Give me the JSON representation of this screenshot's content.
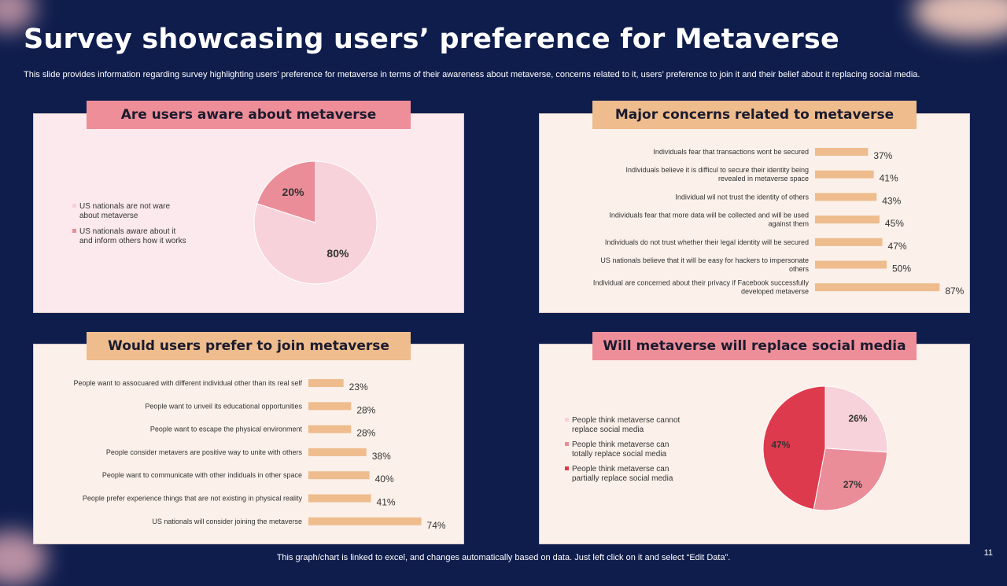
{
  "title": "Survey showcasing users’ preference for Metaverse",
  "subtitle": "This slide provides information regarding survey highlighting users’ preference for metaverse in terms of their awareness about metaverse, concerns related to it, users’ preference to join it and their belief about it replacing social media.",
  "footer": "This graph/chart is linked to excel,  and changes automatically based on data. Just left click on it and select “Edit Data”.",
  "page_number": "11",
  "colors": {
    "background": "#0f1d4d",
    "pink_header": "#ee8e99",
    "peach_header": "#eebc8d",
    "bar": "#eebc8d",
    "pie_light": "#f8d2da",
    "pie_mid": "#ea8d98",
    "pie_dark": "#de3a4d"
  },
  "chart_data": [
    {
      "type": "pie",
      "title": "Are users aware about metaverse",
      "slices": [
        {
          "label": "US nationals are not ware about metaverse",
          "value": 80,
          "display": "80%",
          "color": "#f8d2da"
        },
        {
          "label": "US nationals aware about it and inform others how it works",
          "value": 20,
          "display": "20%",
          "color": "#ea8d98"
        }
      ]
    },
    {
      "type": "bar",
      "orientation": "horizontal",
      "title": "Major concerns related to metaverse",
      "xlim": [
        0,
        100
      ],
      "categories": [
        "Individuals fear that transactions wont be secured",
        "Individuals believe it is difficul to secure their identity being revealed in metaverse space",
        "Individual wil not trust the identity of others",
        "Individuals fear that more data will be collected and will be used against them",
        "Individuals do not trust whether their legal identity will be secured",
        "US nationals believe that it will be easy for hackers to impersonate others",
        "Individual are concerned about their privacy if Facebook successfully developed metaverse"
      ],
      "values": [
        37,
        41,
        43,
        45,
        47,
        50,
        87
      ],
      "value_labels": [
        "37%",
        "41%",
        "43%",
        "45%",
        "47%",
        "50%",
        "87%"
      ]
    },
    {
      "type": "bar",
      "orientation": "horizontal",
      "title": "Would users prefer to join metaverse",
      "xlim": [
        0,
        100
      ],
      "categories": [
        "People want  to assocuared with different individual other than its real self",
        "People want  to unveil its educational opportunities",
        "People want  to escape the physical environment",
        "People consider metavers are positive way to unite with others",
        "People want  to communicate with  other indiduals in other space",
        "People prefer experience things that are not existing in physical reality",
        "US nationals will  consider joining  the metaverse"
      ],
      "values": [
        23,
        28,
        28,
        38,
        40,
        41,
        74
      ],
      "value_labels": [
        "23%",
        "28%",
        "28%",
        "38%",
        "40%",
        "41%",
        "74%"
      ]
    },
    {
      "type": "pie",
      "title": "Will metaverse will replace social media",
      "slices": [
        {
          "label": "People think metaverse cannot replace social media",
          "value": 26,
          "display": "26%",
          "color": "#f8d2da"
        },
        {
          "label": "People think metaverse can totally replace social media",
          "value": 27,
          "display": "27%",
          "color": "#ea8d98"
        },
        {
          "label": "People think metaverse can partially replace social media",
          "value": 47,
          "display": "47%",
          "color": "#de3a4d"
        }
      ]
    }
  ]
}
